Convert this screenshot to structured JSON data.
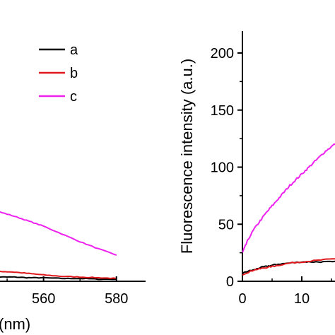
{
  "chart_data": [
    {
      "type": "line",
      "xlabel": "(nm)",
      "xticks": [
        "560",
        "580"
      ],
      "xlim": [
        543,
        588
      ],
      "ylim": [
        0,
        240
      ],
      "legend": {
        "placement": "top-right",
        "entries": [
          "a",
          "b",
          "c"
        ]
      },
      "series": [
        {
          "name": "a",
          "color": "#000000",
          "x": [
            543,
            548,
            552,
            556,
            560,
            565,
            570,
            575,
            580
          ],
          "y": [
            7,
            6,
            6,
            5,
            5,
            4,
            4,
            3,
            3
          ]
        },
        {
          "name": "b",
          "color": "#e0191c",
          "x": [
            543,
            548,
            552,
            556,
            560,
            565,
            570,
            575,
            580
          ],
          "y": [
            16,
            14,
            13,
            11,
            9,
            7,
            6,
            5,
            4
          ]
        },
        {
          "name": "c",
          "color": "#ee22ee",
          "x": [
            543,
            545,
            548,
            552,
            556,
            560,
            565,
            570,
            575,
            580
          ],
          "y": [
            105,
            102,
            98,
            92,
            85,
            78,
            67,
            56,
            46,
            37
          ]
        }
      ]
    },
    {
      "type": "line",
      "ylabel": "Fluorescence intensity (a.u.)",
      "xticks": [
        "0",
        "10"
      ],
      "yticks": [
        "0",
        "50",
        "100",
        "150",
        "200"
      ],
      "xlim": [
        0,
        24
      ],
      "ylim": [
        0,
        200
      ],
      "series": [
        {
          "color": "#000000",
          "x": [
            0,
            1,
            2,
            3,
            4,
            5,
            6,
            8,
            10,
            12,
            14,
            16,
            18
          ],
          "y": [
            7,
            9,
            10,
            12,
            13,
            14,
            15,
            16,
            17,
            17,
            17,
            17,
            18
          ]
        },
        {
          "color": "#e0191c",
          "x": [
            0,
            1,
            2,
            3,
            4,
            5,
            6,
            8,
            10,
            12,
            14,
            16,
            18
          ],
          "y": [
            6,
            8,
            10,
            11,
            12,
            13,
            14,
            16,
            17,
            18,
            19,
            20,
            21
          ]
        },
        {
          "color": "#ee22ee",
          "x": [
            0,
            0.5,
            1,
            2,
            3,
            4,
            5,
            6,
            7,
            8,
            9,
            10,
            11,
            12,
            13,
            14,
            15,
            16,
            17,
            18
          ],
          "y": [
            25,
            31,
            37,
            46,
            53,
            60,
            66,
            72,
            78,
            84,
            89,
            94,
            99,
            104,
            109,
            114,
            118,
            122,
            127,
            130
          ]
        }
      ]
    }
  ]
}
